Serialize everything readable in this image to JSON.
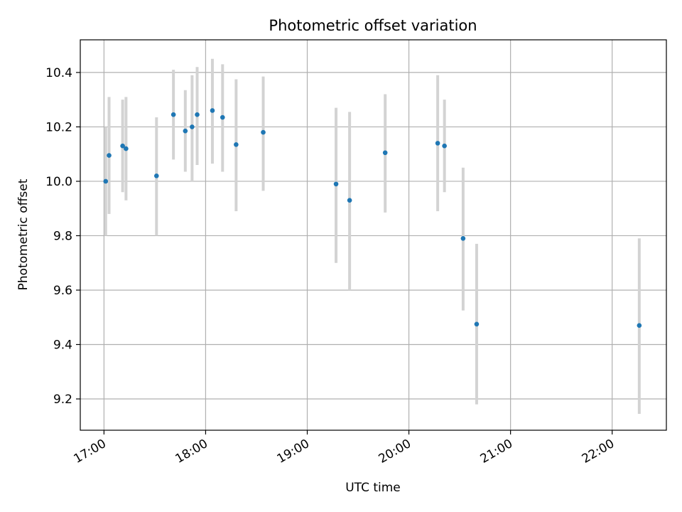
{
  "chart_data": {
    "type": "scatter",
    "title": "Photometric offset variation",
    "xlabel": "UTC time",
    "ylabel": "Photometric offset",
    "xlim": [
      "16:46",
      "22:32"
    ],
    "ylim": [
      9.085,
      10.52
    ],
    "x_ticks": [
      "17:00",
      "18:00",
      "19:00",
      "20:00",
      "21:00",
      "22:00"
    ],
    "y_ticks": [
      9.2,
      9.4,
      9.6,
      9.8,
      10.0,
      10.2,
      10.4
    ],
    "grid": true,
    "legend": "none",
    "colors": {
      "point": "#1f77b4",
      "errorbar": "#d3d3d3",
      "grid": "#b0b0b0"
    },
    "points": [
      {
        "x": "17:01",
        "y": 10.0,
        "y_low": 9.8,
        "y_high": 10.2
      },
      {
        "x": "17:03",
        "y": 10.095,
        "y_low": 9.88,
        "y_high": 10.31
      },
      {
        "x": "17:11",
        "y": 10.13,
        "y_low": 9.96,
        "y_high": 10.3
      },
      {
        "x": "17:13",
        "y": 10.12,
        "y_low": 9.93,
        "y_high": 10.31
      },
      {
        "x": "17:31",
        "y": 10.02,
        "y_low": 9.8,
        "y_high": 10.235
      },
      {
        "x": "17:41",
        "y": 10.245,
        "y_low": 10.08,
        "y_high": 10.41
      },
      {
        "x": "17:48",
        "y": 10.185,
        "y_low": 10.035,
        "y_high": 10.335
      },
      {
        "x": "17:52",
        "y": 10.2,
        "y_low": 10.0,
        "y_high": 10.39
      },
      {
        "x": "17:55",
        "y": 10.245,
        "y_low": 10.06,
        "y_high": 10.42
      },
      {
        "x": "18:04",
        "y": 10.26,
        "y_low": 10.065,
        "y_high": 10.45
      },
      {
        "x": "18:10",
        "y": 10.235,
        "y_low": 10.035,
        "y_high": 10.43
      },
      {
        "x": "18:18",
        "y": 10.135,
        "y_low": 9.89,
        "y_high": 10.375
      },
      {
        "x": "18:34",
        "y": 10.18,
        "y_low": 9.965,
        "y_high": 10.385
      },
      {
        "x": "19:17",
        "y": 9.99,
        "y_low": 9.7,
        "y_high": 10.27
      },
      {
        "x": "19:25",
        "y": 9.93,
        "y_low": 9.6,
        "y_high": 10.255
      },
      {
        "x": "19:46",
        "y": 10.105,
        "y_low": 9.885,
        "y_high": 10.32
      },
      {
        "x": "20:17",
        "y": 10.14,
        "y_low": 9.89,
        "y_high": 10.39
      },
      {
        "x": "20:21",
        "y": 10.13,
        "y_low": 9.96,
        "y_high": 10.3
      },
      {
        "x": "20:32",
        "y": 9.79,
        "y_low": 9.525,
        "y_high": 10.05
      },
      {
        "x": "20:40",
        "y": 9.475,
        "y_low": 9.18,
        "y_high": 9.77
      },
      {
        "x": "22:16",
        "y": 9.47,
        "y_low": 9.145,
        "y_high": 9.79
      }
    ]
  }
}
